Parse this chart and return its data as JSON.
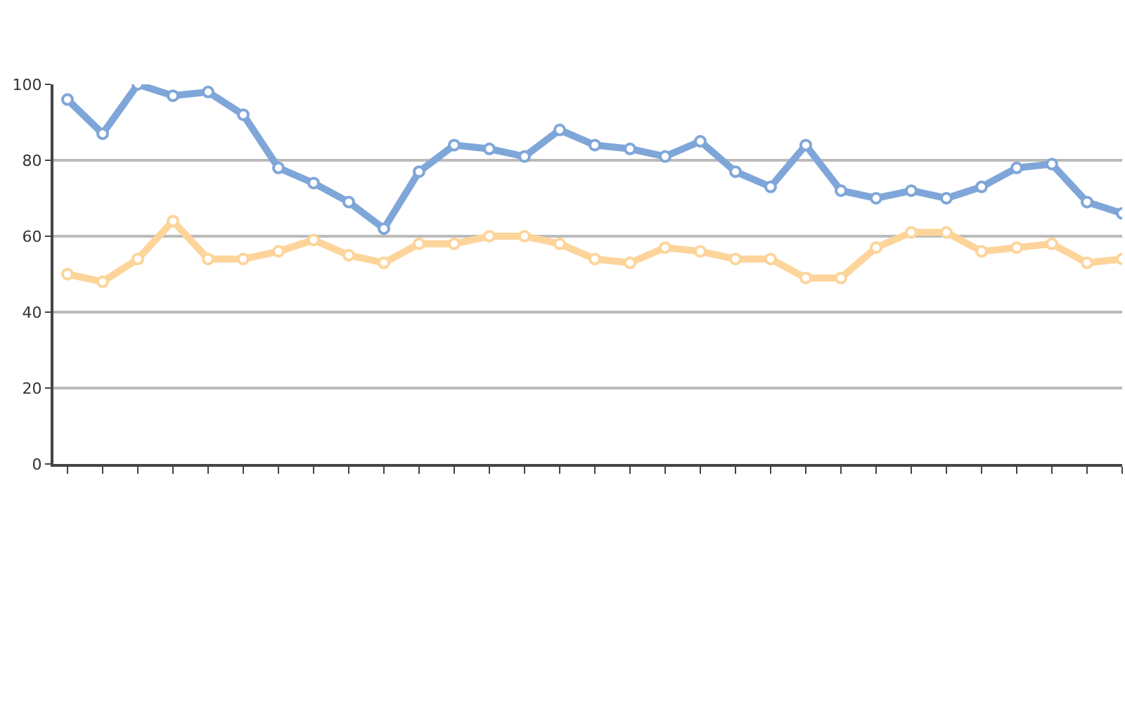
{
  "chart_data": {
    "type": "line",
    "categories": [
      null,
      null,
      null,
      null,
      null,
      null,
      null,
      null,
      null,
      null,
      null,
      null,
      null,
      null,
      null,
      null,
      null,
      null,
      null,
      null,
      null,
      null,
      null,
      null,
      null,
      null,
      null,
      null,
      null,
      null,
      null
    ],
    "series": [
      {
        "color": "#7fa6d8",
        "values": [
          96,
          87,
          100,
          97,
          98,
          92,
          78,
          74,
          69,
          62,
          77,
          84,
          83,
          81,
          88,
          84,
          83,
          81,
          85,
          77,
          73,
          84,
          72,
          70,
          72,
          70,
          73,
          78,
          79,
          69,
          66
        ]
      },
      {
        "color": "#fdd49a",
        "values": [
          50,
          48,
          54,
          64,
          54,
          54,
          56,
          59,
          55,
          53,
          58,
          58,
          60,
          60,
          58,
          54,
          53,
          57,
          56,
          54,
          54,
          49,
          49,
          57,
          61,
          61,
          56,
          57,
          58,
          53,
          54
        ]
      }
    ],
    "ylim": [
      0,
      100
    ],
    "yticks": [
      0,
      20,
      40,
      60,
      80,
      100
    ],
    "grid": "y",
    "marker": "circle",
    "line_style": "solid"
  }
}
